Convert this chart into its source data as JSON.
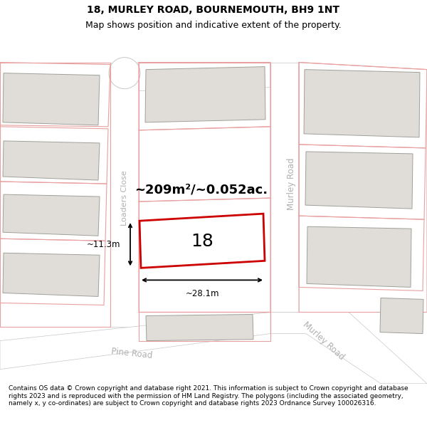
{
  "title_line1": "18, MURLEY ROAD, BOURNEMOUTH, BH9 1NT",
  "title_line2": "Map shows position and indicative extent of the property.",
  "footer_text": "Contains OS data © Crown copyright and database right 2021. This information is subject to Crown copyright and database rights 2023 and is reproduced with the permission of HM Land Registry. The polygons (including the associated geometry, namely x, y co-ordinates) are subject to Crown copyright and database rights 2023 Ordnance Survey 100026316.",
  "map_bg": "#ffffff",
  "building_fill": "#e0ddd8",
  "building_edge": "#a0a09a",
  "lot_line_color": "#e8a0a0",
  "road_fill": "#ffffff",
  "road_edge": "#c8c8c8",
  "highlight_fill": "#ffffff",
  "highlight_edge": "#cc0000",
  "road_label_color": "#b0b0b0",
  "area_text": "~209m²/~0.052ac.",
  "property_number": "18",
  "width_label": "~28.1m",
  "height_label": "~11.3m",
  "title_fontsize": 10,
  "subtitle_fontsize": 9,
  "footer_fontsize": 6.5
}
